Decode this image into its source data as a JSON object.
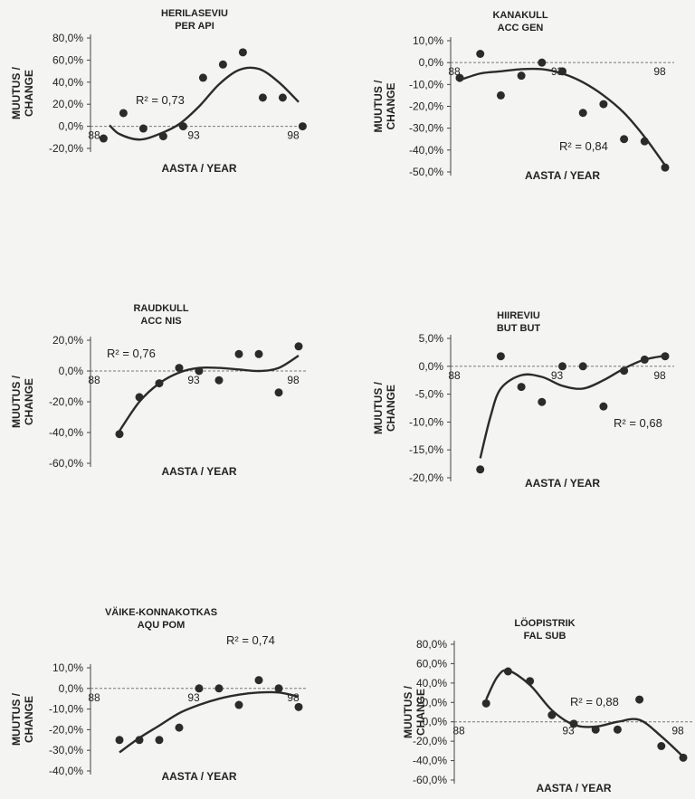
{
  "chart_data": [
    {
      "type": "scatter",
      "title": "HERILASEVIU",
      "subtitle": "PER API",
      "xlabel": "AASTA / YEAR",
      "ylabel": "MUUTUS / CHANGE",
      "x_ticks": [
        "88",
        "93",
        "98"
      ],
      "y_ticks": [
        "80,0%",
        "60,0%",
        "40,0%",
        "20,0%",
        "0,0%",
        "-20,0%"
      ],
      "ylim": [
        -20,
        80
      ],
      "xlim": [
        88,
        98
      ],
      "annotation": "R² = 0,73",
      "x": [
        88.2,
        89.2,
        90.2,
        91.2,
        92.2,
        93.2,
        94.2,
        95.2,
        96.2,
        97.2,
        98.2
      ],
      "values": [
        -11,
        12,
        -2,
        -9,
        0,
        44,
        56,
        67,
        26,
        26,
        0
      ],
      "trend": [
        [
          88.5,
          1
        ],
        [
          89,
          -7
        ],
        [
          90,
          -12
        ],
        [
          91,
          -7
        ],
        [
          92,
          2
        ],
        [
          93,
          18
        ],
        [
          94,
          38
        ],
        [
          95,
          51
        ],
        [
          96,
          52
        ],
        [
          97,
          40
        ],
        [
          98,
          22
        ]
      ]
    },
    {
      "type": "scatter",
      "title": "KANAKULL",
      "subtitle": "ACC GEN",
      "xlabel": "AASTA / YEAR",
      "ylabel": "MUUTUS / CHANGE",
      "x_ticks": [
        "88",
        "93",
        "98"
      ],
      "y_ticks": [
        "10,0%",
        "0,0%",
        "-10,0%",
        "-20,0%",
        "-30,0%",
        "-40,0%",
        "-50,0%"
      ],
      "ylim": [
        -50,
        10
      ],
      "xlim": [
        88,
        98
      ],
      "annotation": "R² = 0,84",
      "x": [
        88.0,
        89.0,
        90.0,
        91.0,
        92.0,
        93.0,
        94.0,
        95.0,
        96.0,
        97.0,
        98.0
      ],
      "values": [
        -7,
        4,
        -15,
        -6,
        0,
        -4,
        -23,
        -19,
        -35,
        -36,
        -48
      ],
      "trend": [
        [
          88,
          -8
        ],
        [
          89,
          -5
        ],
        [
          90,
          -4
        ],
        [
          91,
          -3
        ],
        [
          92,
          -3
        ],
        [
          93,
          -5
        ],
        [
          94,
          -9
        ],
        [
          95,
          -15
        ],
        [
          96,
          -23
        ],
        [
          97,
          -34
        ],
        [
          98,
          -47
        ]
      ]
    },
    {
      "type": "scatter",
      "title": "RAUDKULL",
      "subtitle": "ACC NIS",
      "xlabel": "AASTA / YEAR",
      "ylabel": "MUUTUS / CHANGE",
      "x_ticks": [
        "88",
        "93",
        "98"
      ],
      "y_ticks": [
        "20,0%",
        "0,0%",
        "-20,0%",
        "-40,0%",
        "-60,0%"
      ],
      "ylim": [
        -60,
        20
      ],
      "xlim": [
        88,
        98
      ],
      "annotation": "R² = 0,76",
      "x": [
        89.0,
        90.0,
        91.0,
        92.0,
        93.0,
        94.0,
        95.0,
        96.0,
        97.0,
        98.0
      ],
      "values": [
        -41,
        -17,
        -8,
        2,
        0,
        -6,
        11,
        11,
        -14,
        16
      ],
      "trend": [
        [
          89,
          -39
        ],
        [
          90,
          -20
        ],
        [
          91,
          -8
        ],
        [
          92,
          -1
        ],
        [
          93,
          2
        ],
        [
          94,
          2
        ],
        [
          95,
          1
        ],
        [
          96,
          0
        ],
        [
          97,
          2
        ],
        [
          98,
          10
        ]
      ]
    },
    {
      "type": "scatter",
      "title": "HIIREVIU",
      "subtitle": "BUT BUT",
      "xlabel": "AASTA / YEAR",
      "ylabel": "MUUTUS / CHANGE",
      "x_ticks": [
        "88",
        "93",
        "98"
      ],
      "y_ticks": [
        "5,0%",
        "0,0%",
        "-5,0%",
        "-10,0%",
        "-15,0%",
        "-20,0%"
      ],
      "ylim": [
        -20,
        5
      ],
      "xlim": [
        88,
        98
      ],
      "annotation": "R² = 0,68",
      "x": [
        89.0,
        90.0,
        91.0,
        92.0,
        93.0,
        94.0,
        95.0,
        96.0,
        97.0,
        98.0
      ],
      "values": [
        -18.5,
        1.8,
        -3.7,
        -6.4,
        0,
        0,
        -7.2,
        -0.8,
        1.2,
        1.8
      ],
      "trend": [
        [
          89,
          -16.5
        ],
        [
          89.5,
          -9
        ],
        [
          90,
          -4
        ],
        [
          91,
          -1.6
        ],
        [
          92,
          -1.9
        ],
        [
          93,
          -3.5
        ],
        [
          94,
          -4
        ],
        [
          95,
          -2.5
        ],
        [
          96,
          -0.4
        ],
        [
          97,
          1.2
        ],
        [
          98,
          1.9
        ]
      ]
    },
    {
      "type": "scatter",
      "title": "VÄIKE-KONNAKOTKAS",
      "subtitle": "AQU POM",
      "xlabel": "AASTA / YEAR",
      "ylabel": "MUUTUS / CHANGE",
      "x_ticks": [
        "88",
        "93",
        "98"
      ],
      "y_ticks": [
        "10,0%",
        "0,0%",
        "-10,0%",
        "-20,0%",
        "-30,0%",
        "-40,0%"
      ],
      "ylim": [
        -40,
        10
      ],
      "xlim": [
        88,
        98
      ],
      "annotation": "R² = 0,74",
      "x": [
        89.0,
        90.0,
        91.0,
        92.0,
        93.0,
        94.0,
        95.0,
        96.0,
        97.0,
        98.0
      ],
      "values": [
        -25,
        -25,
        -25,
        -19,
        0,
        0,
        -8,
        4,
        0,
        -9
      ],
      "trend": [
        [
          89,
          -31
        ],
        [
          90,
          -24
        ],
        [
          91,
          -18
        ],
        [
          92,
          -12
        ],
        [
          93,
          -8
        ],
        [
          94,
          -5
        ],
        [
          95,
          -3
        ],
        [
          96,
          -2
        ],
        [
          97,
          -2
        ],
        [
          98,
          -4
        ]
      ]
    },
    {
      "type": "scatter",
      "title": "LÖOPISTRIK",
      "subtitle": "FAL SUB",
      "xlabel": "AASTA / YEAR",
      "ylabel": "MUUTUS / CHANGE",
      "x_ticks": [
        "88",
        "93",
        "98"
      ],
      "y_ticks": [
        "80,0%",
        "60,0%",
        "40,0%",
        "20,0%",
        "0,0%",
        "-20,0%",
        "-40,0%",
        "-60,0%"
      ],
      "ylim": [
        -60,
        80
      ],
      "xlim": [
        88,
        98
      ],
      "annotation": "R² = 0,88",
      "x": [
        89.0,
        90.0,
        91.0,
        92.0,
        93.0,
        94.0,
        95.0,
        96.0,
        97.0,
        98.0
      ],
      "values": [
        19,
        52,
        42,
        7,
        -2,
        -8,
        -8,
        23,
        -25,
        -37
      ],
      "trend": [
        [
          89,
          23
        ],
        [
          89.5,
          46
        ],
        [
          90,
          53
        ],
        [
          91,
          38
        ],
        [
          92,
          12
        ],
        [
          93,
          -3
        ],
        [
          94,
          -5
        ],
        [
          95,
          0
        ],
        [
          96,
          2
        ],
        [
          97,
          -15
        ],
        [
          98,
          -36
        ]
      ]
    }
  ]
}
